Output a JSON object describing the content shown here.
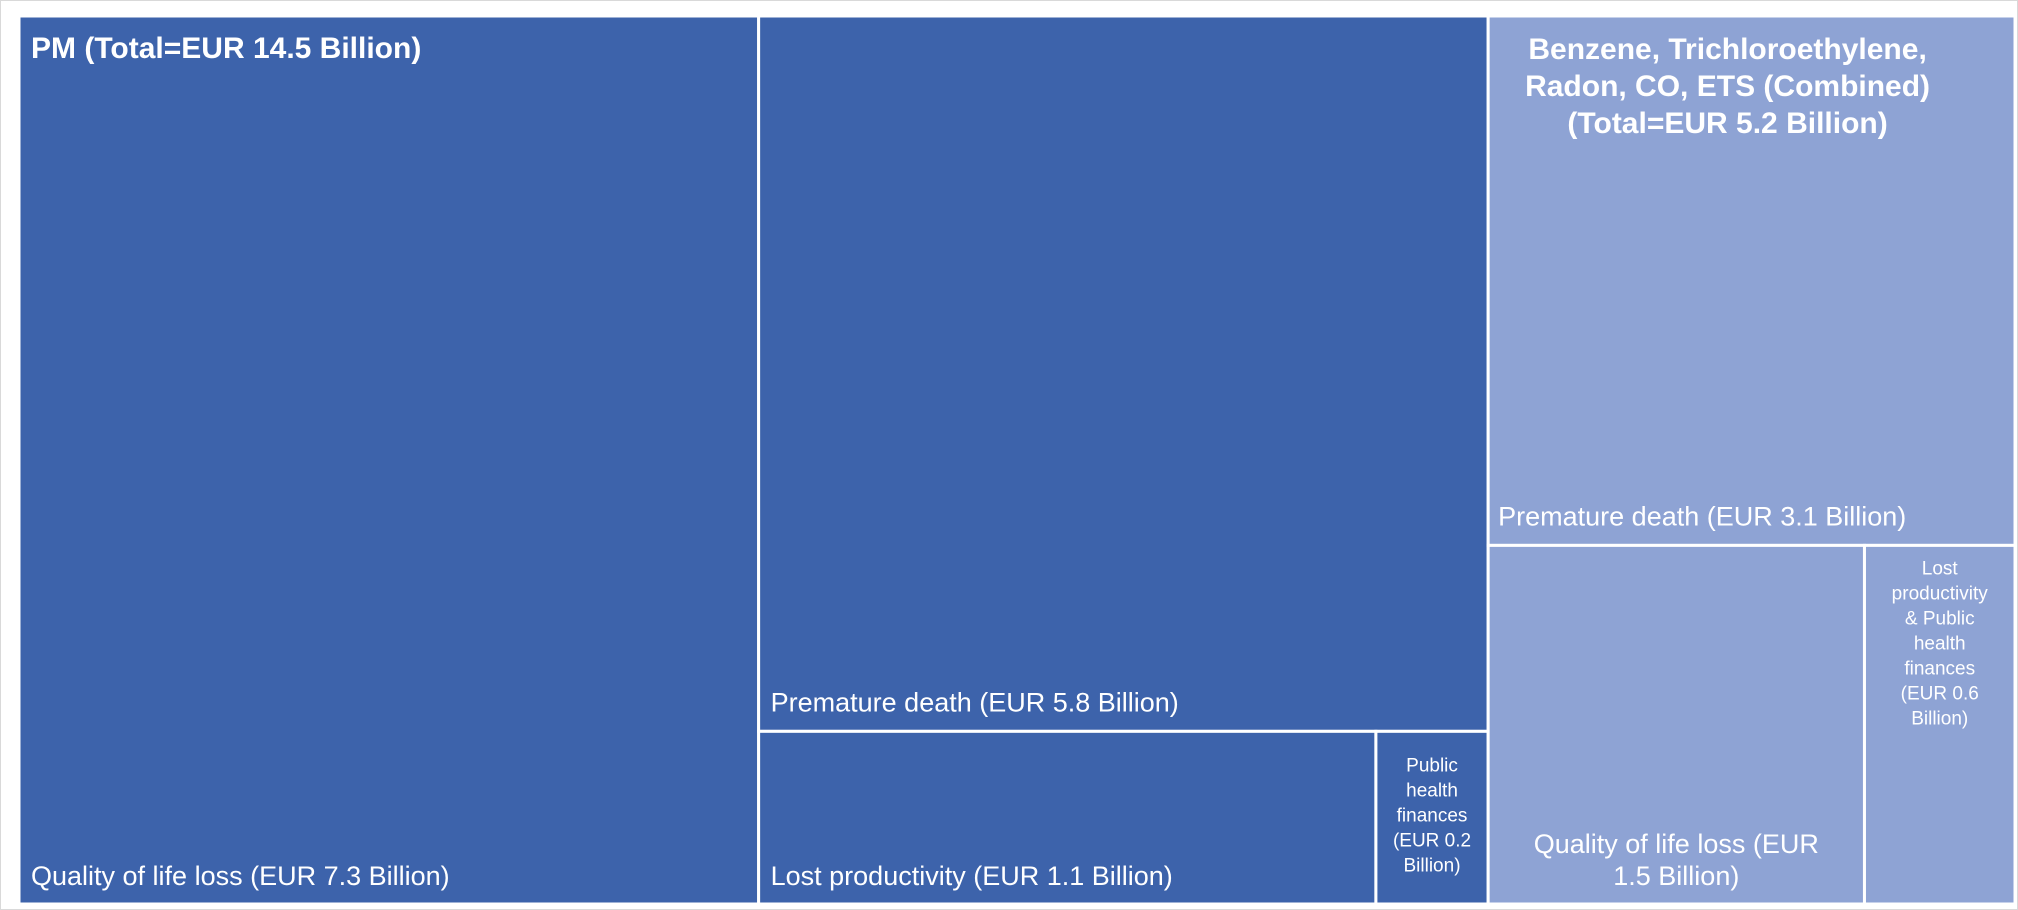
{
  "chart_data": {
    "type": "treemap",
    "title": "",
    "groups": [
      {
        "name": "PM",
        "label": "PM (Total=EUR 14.5 Billion)",
        "total": 14.5,
        "color": "#3d63ab",
        "items": [
          {
            "name": "Quality of life loss",
            "value": 7.3,
            "label": "Quality of life loss (EUR 7.3 Billion)"
          },
          {
            "name": "Premature death",
            "value": 5.8,
            "label": "Premature death (EUR 5.8 Billion)"
          },
          {
            "name": "Lost productivity",
            "value": 1.1,
            "label": "Lost productivity (EUR 1.1 Billion)"
          },
          {
            "name": "Public health finances",
            "value": 0.2,
            "label": [
              "Public",
              "health",
              "finances",
              "(EUR 0.2",
              "Billion)"
            ]
          }
        ]
      },
      {
        "name": "Benzene, Trichloroethylene, Radon, CO, ETS (Combined)",
        "label": [
          "Benzene, Trichloroethylene,",
          "Radon, CO, ETS (Combined)",
          "(Total=EUR 5.2 Billion)"
        ],
        "total": 5.2,
        "color": "#8ea3d4",
        "items": [
          {
            "name": "Premature death",
            "value": 3.1,
            "label": "Premature death (EUR 3.1 Billion)"
          },
          {
            "name": "Quality of life loss",
            "value": 1.5,
            "label": [
              "Quality of life loss (EUR",
              "1.5 Billion)"
            ]
          },
          {
            "name": "Lost productivity & Public health finances",
            "value": 0.6,
            "label": [
              "Lost",
              "productivity",
              "& Public",
              "health",
              "finances",
              "(EUR 0.6",
              "Billion)"
            ]
          }
        ]
      }
    ]
  }
}
